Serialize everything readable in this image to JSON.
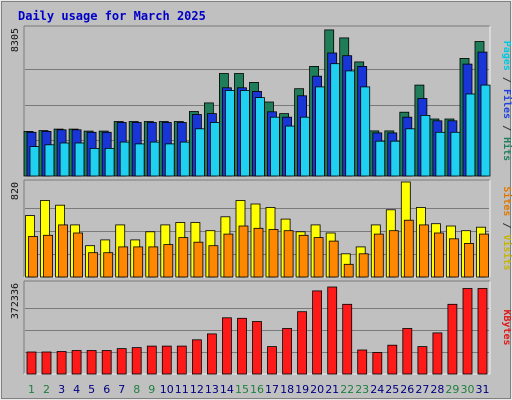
{
  "chart_data": {
    "type": "bar",
    "title": "Daily usage for March 2025",
    "categories": [
      "1",
      "2",
      "3",
      "4",
      "5",
      "6",
      "7",
      "8",
      "9",
      "10",
      "11",
      "12",
      "13",
      "14",
      "15",
      "16",
      "17",
      "18",
      "19",
      "20",
      "21",
      "22",
      "23",
      "24",
      "25",
      "26",
      "27",
      "28",
      "29",
      "30",
      "31"
    ],
    "weekend_days": [
      "1",
      "2",
      "8",
      "9",
      "15",
      "16",
      "22",
      "23",
      "29",
      "30"
    ],
    "grid": true,
    "panels": [
      {
        "id": "hits",
        "max_label": "8305",
        "ylim": [
          0,
          8305
        ],
        "label_parts": [
          {
            "text": "Pages",
            "color": "#00c8e0"
          },
          {
            "text": " / ",
            "color": "#333333"
          },
          {
            "text": "Files",
            "color": "#2040e0"
          },
          {
            "text": " / ",
            "color": "#333333"
          },
          {
            "text": "Hits",
            "color": "#208060"
          }
        ],
        "series": [
          {
            "name": "Hits",
            "color": "#1f7d5a",
            "values": [
              2500,
              2550,
              2630,
              2630,
              2520,
              2520,
              3060,
              3060,
              3060,
              3060,
              3060,
              3620,
              4100,
              5750,
              5750,
              5250,
              4150,
              3500,
              4900,
              6150,
              8200,
              7750,
              6400,
              2530,
              2530,
              3580,
              5100,
              3200,
              3200,
              6600,
              7550
            ]
          },
          {
            "name": "Files",
            "color": "#1836d8",
            "values": [
              2450,
              2500,
              2590,
              2590,
              2450,
              2450,
              3000,
              3000,
              3000,
              3000,
              3000,
              3450,
              3500,
              4950,
              4950,
              4750,
              3600,
              3300,
              4500,
              5600,
              6900,
              6750,
              6150,
              2420,
              2420,
              3300,
              4350,
              3100,
              3100,
              6280,
              6950
            ]
          },
          {
            "name": "Pages",
            "color": "#20d0f0",
            "values": [
              1650,
              1750,
              1850,
              1850,
              1550,
              1550,
              1900,
              1800,
              1900,
              1800,
              1900,
              2650,
              3000,
              4800,
              4800,
              4400,
              3300,
              2800,
              3300,
              5000,
              6300,
              5900,
              5000,
              1950,
              1950,
              2650,
              3400,
              2450,
              2450,
              4600,
              5100
            ]
          }
        ]
      },
      {
        "id": "visits",
        "max_label": "820",
        "ylim": [
          0,
          820
        ],
        "label_parts": [
          {
            "text": "Sites",
            "color": "#e07800"
          },
          {
            "text": " / ",
            "color": "#333333"
          },
          {
            "text": "Visits",
            "color": "#c8b400"
          }
        ],
        "series": [
          {
            "name": "Visits",
            "color": "#ffff00",
            "values": [
              530,
              660,
              620,
              450,
              270,
              320,
              450,
              320,
              390,
              450,
              470,
              470,
              400,
              520,
              660,
              630,
              600,
              500,
              390,
              450,
              380,
              200,
              260,
              450,
              580,
              820,
              600,
              460,
              440,
              400,
              430
            ]
          },
          {
            "name": "Sites",
            "color": "#ff8800",
            "values": [
              350,
              360,
              450,
              380,
              210,
              210,
              260,
              260,
              260,
              280,
              340,
              300,
              270,
              370,
              440,
              420,
              410,
              400,
              360,
              340,
              310,
              110,
              200,
              370,
              400,
              490,
              450,
              380,
              330,
              290,
              370
            ]
          }
        ]
      },
      {
        "id": "kbytes",
        "max_label": "372336",
        "ylim": [
          0,
          372336
        ],
        "label_parts": [
          {
            "text": "KBytes",
            "color": "#e01818"
          }
        ],
        "series": [
          {
            "name": "KBytes",
            "color": "#ff1a1a",
            "values": [
              90000,
              90000,
              92000,
              96000,
              96000,
              96000,
              104000,
              108000,
              114000,
              114000,
              114000,
              140000,
              164000,
              230000,
              228000,
              215000,
              112000,
              186000,
              255000,
              340000,
              356000,
              285000,
              98000,
              88000,
              118000,
              186000,
              112000,
              168000,
              285000,
              350000,
              350000
            ]
          }
        ]
      }
    ]
  }
}
